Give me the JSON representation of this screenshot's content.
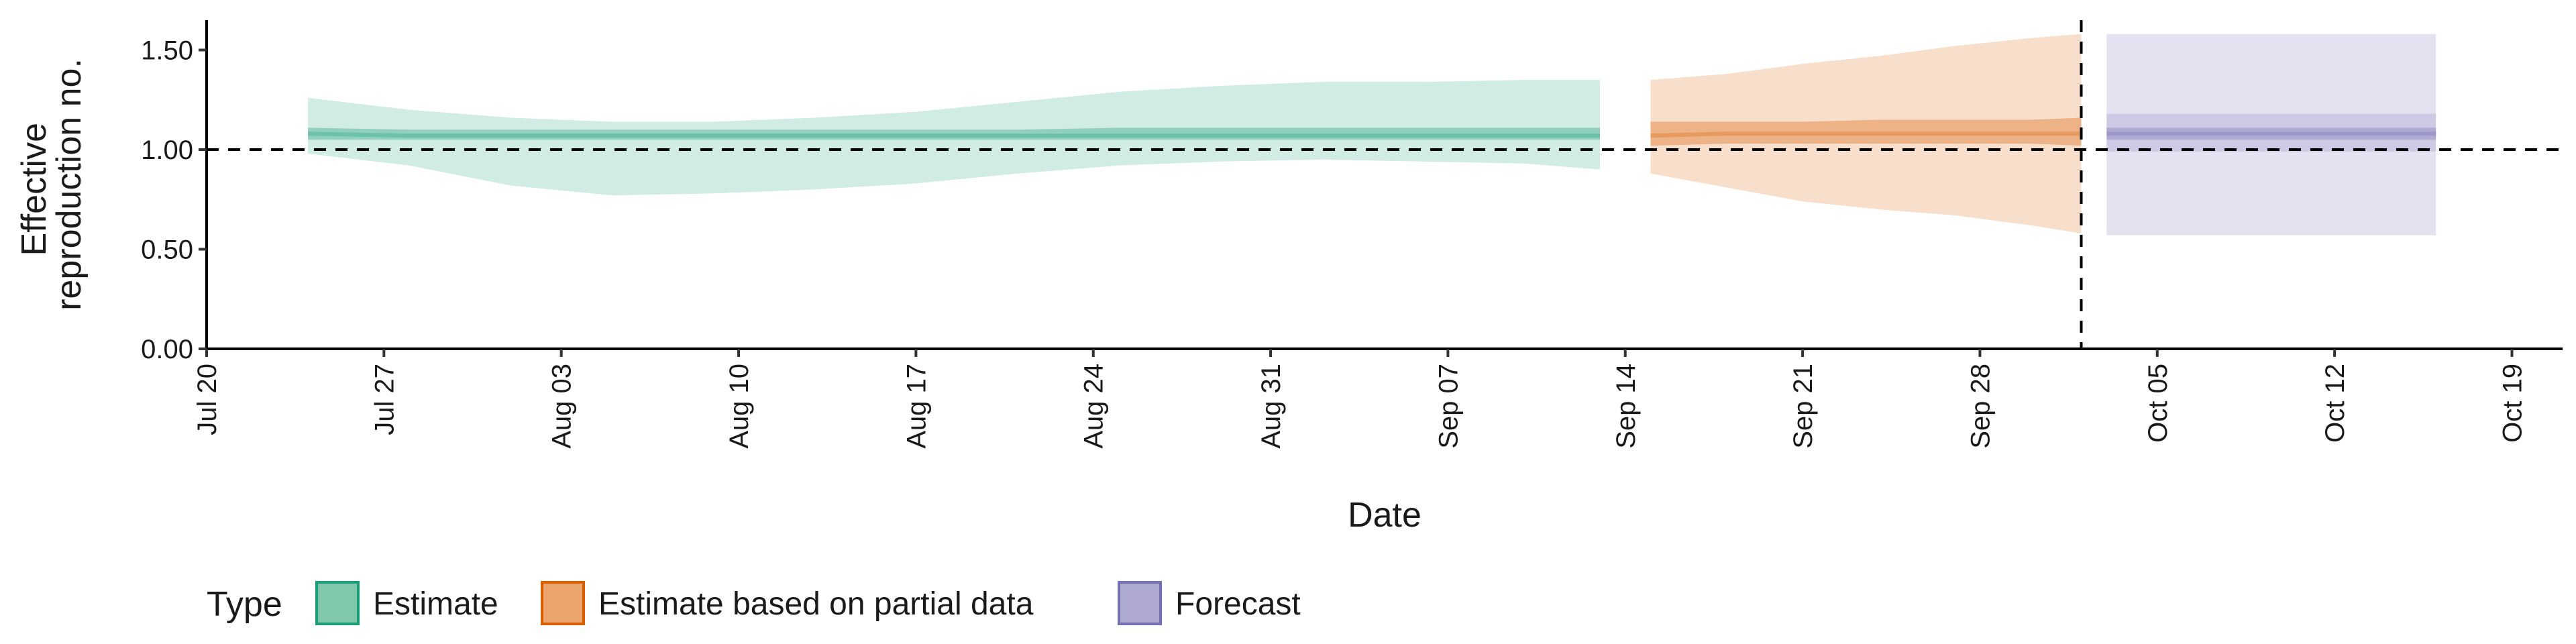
{
  "chart_data": {
    "type": "area",
    "xlabel": "Date",
    "ylabel_lines": [
      "Effective",
      "reproduction no."
    ],
    "x_ticks": [
      "Jul 20",
      "Jul 27",
      "Aug 03",
      "Aug 10",
      "Aug 17",
      "Aug 24",
      "Aug 31",
      "Sep 07",
      "Sep 14",
      "Sep 21",
      "Sep 28",
      "Oct 05",
      "Oct 12",
      "Oct 19"
    ],
    "x_tick_dates": [
      "2020-07-20",
      "2020-07-27",
      "2020-08-03",
      "2020-08-10",
      "2020-08-17",
      "2020-08-24",
      "2020-08-31",
      "2020-09-07",
      "2020-09-14",
      "2020-09-21",
      "2020-09-28",
      "2020-10-05",
      "2020-10-12",
      "2020-10-19"
    ],
    "xlim": [
      "2020-07-20",
      "2020-10-21"
    ],
    "y_ticks": [
      "0.00",
      "0.50",
      "1.00",
      "1.50"
    ],
    "y_tick_values": [
      0,
      0.5,
      1.0,
      1.5
    ],
    "ylim": [
      0,
      1.65
    ],
    "reference_hline": 1.0,
    "reference_vline_date": "2020-10-02",
    "legend": {
      "title": "Type",
      "position": "bottom-left",
      "entries": [
        {
          "label": "Estimate",
          "fill": "#7fc8ab",
          "stroke": "#1b9e77"
        },
        {
          "label": "Estimate based on partial data",
          "fill": "#eda56e",
          "stroke": "#d95f02"
        },
        {
          "label": "Forecast",
          "fill": "#aeaad2",
          "stroke": "#7570b3"
        }
      ]
    },
    "series": [
      {
        "type": "Estimate",
        "color": "#1b9e77",
        "x": [
          "2020-07-24",
          "2020-07-28",
          "2020-08-01",
          "2020-08-05",
          "2020-08-09",
          "2020-08-13",
          "2020-08-17",
          "2020-08-21",
          "2020-08-25",
          "2020-08-29",
          "2020-09-02",
          "2020-09-06",
          "2020-09-10",
          "2020-09-13"
        ],
        "median": [
          1.08,
          1.07,
          1.07,
          1.07,
          1.07,
          1.07,
          1.07,
          1.07,
          1.07,
          1.07,
          1.07,
          1.07,
          1.07,
          1.07
        ],
        "lower_50": [
          1.05,
          1.05,
          1.05,
          1.05,
          1.05,
          1.05,
          1.05,
          1.05,
          1.05,
          1.05,
          1.05,
          1.05,
          1.05,
          1.05
        ],
        "upper_50": [
          1.11,
          1.1,
          1.1,
          1.1,
          1.1,
          1.1,
          1.1,
          1.1,
          1.11,
          1.11,
          1.11,
          1.11,
          1.11,
          1.11
        ],
        "lower_90": [
          0.98,
          0.92,
          0.82,
          0.77,
          0.78,
          0.8,
          0.83,
          0.88,
          0.92,
          0.94,
          0.95,
          0.94,
          0.93,
          0.9
        ],
        "upper_90": [
          1.26,
          1.2,
          1.16,
          1.14,
          1.14,
          1.16,
          1.19,
          1.24,
          1.29,
          1.32,
          1.34,
          1.34,
          1.35,
          1.35
        ]
      },
      {
        "type": "Estimate based on partial data",
        "color": "#d95f02",
        "x": [
          "2020-09-15",
          "2020-09-18",
          "2020-09-21",
          "2020-09-24",
          "2020-09-27",
          "2020-09-30",
          "2020-10-02"
        ],
        "median": [
          1.07,
          1.08,
          1.08,
          1.08,
          1.08,
          1.08,
          1.08
        ],
        "lower_50": [
          1.02,
          1.03,
          1.03,
          1.03,
          1.03,
          1.03,
          1.02
        ],
        "upper_50": [
          1.14,
          1.14,
          1.14,
          1.15,
          1.15,
          1.15,
          1.16
        ],
        "lower_90": [
          0.88,
          0.81,
          0.74,
          0.7,
          0.67,
          0.62,
          0.58
        ],
        "upper_90": [
          1.35,
          1.38,
          1.43,
          1.47,
          1.52,
          1.56,
          1.58
        ]
      },
      {
        "type": "Forecast",
        "color": "#7570b3",
        "x": [
          "2020-10-03",
          "2020-10-16"
        ],
        "median": [
          1.08,
          1.08
        ],
        "lower_50": [
          1.05,
          1.05
        ],
        "upper_50": [
          1.11,
          1.11
        ],
        "lower_75": [
          0.99,
          0.99
        ],
        "upper_75": [
          1.18,
          1.18
        ],
        "lower_90": [
          0.57,
          0.57
        ],
        "upper_90": [
          1.58,
          1.58
        ]
      }
    ]
  }
}
